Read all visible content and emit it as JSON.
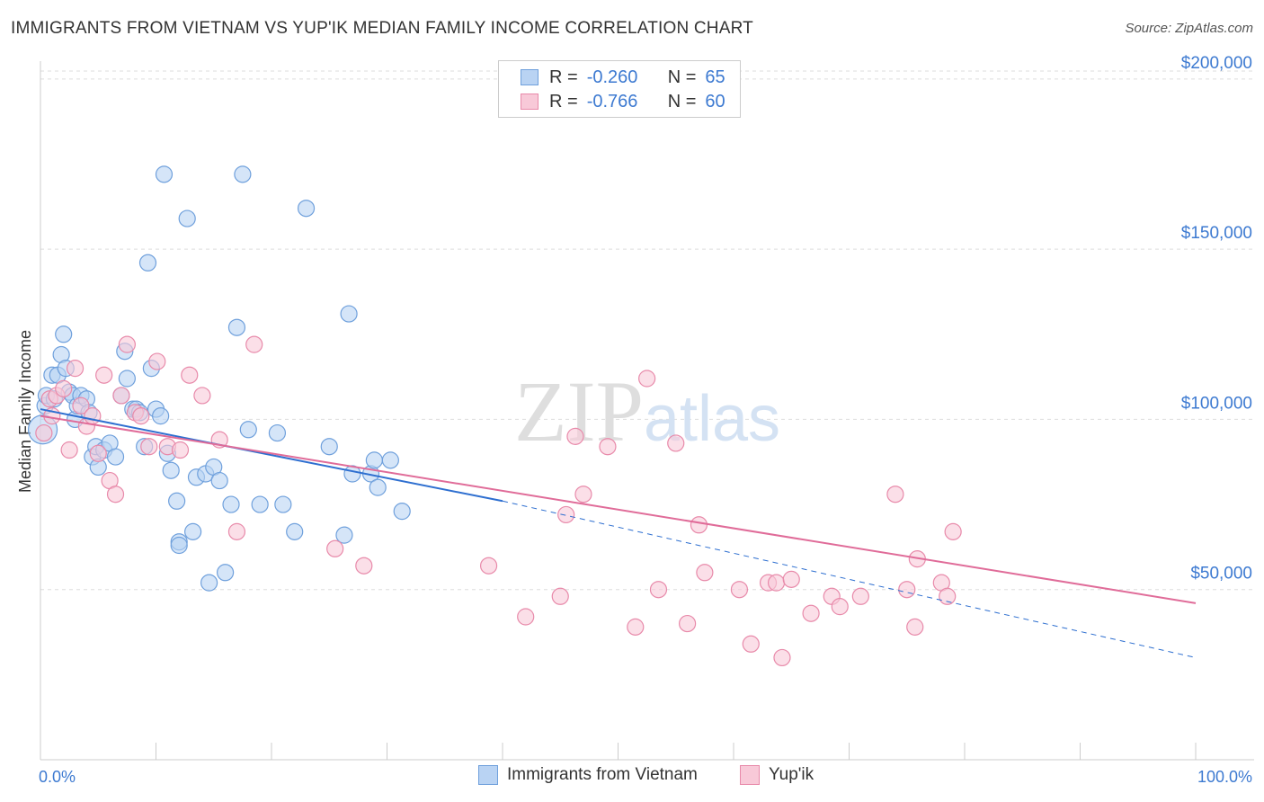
{
  "header": {
    "title": "IMMIGRANTS FROM VIETNAM VS YUP'IK MEDIAN FAMILY INCOME CORRELATION CHART",
    "source": "Source: ZipAtlas.com"
  },
  "legend": {
    "r_label": "R =",
    "n_label": "N =",
    "rows": [
      {
        "r": "-0.260",
        "n": "65"
      },
      {
        "r": "-0.766",
        "n": "60"
      }
    ]
  },
  "watermark": {
    "part1": "ZIP",
    "part2": "atlas"
  },
  "colors": {
    "blue_fill": "#b9d3f3",
    "blue_stroke": "#6fa0dc",
    "blue_line": "#2e6fd0",
    "pink_fill": "#f8c9d8",
    "pink_stroke": "#e88aaa",
    "pink_line": "#e06c99",
    "tick_text": "#3d7ad1",
    "grid": "#dddddd"
  },
  "chart_data": {
    "type": "scatter",
    "title": "IMMIGRANTS FROM VIETNAM VS YUP'IK MEDIAN FAMILY INCOME CORRELATION CHART",
    "xlabel": "",
    "ylabel": "Median Family Income",
    "xlim": [
      0,
      100
    ],
    "ylim": [
      0,
      210000
    ],
    "x_tick_labels": [
      "0.0%",
      "100.0%"
    ],
    "y_ticks": [
      50000,
      100000,
      150000,
      200000
    ],
    "y_tick_labels": [
      "$50,000",
      "$100,000",
      "$150,000",
      "$200,000"
    ],
    "grid": true,
    "legend_position": "top-center",
    "series": [
      {
        "name": "Immigrants from Vietnam",
        "color": "#6fa0dc",
        "points": [
          [
            0.2,
            97000
          ],
          [
            0.4,
            104000
          ],
          [
            0.5,
            107000
          ],
          [
            1.0,
            113000
          ],
          [
            1.2,
            106000
          ],
          [
            1.5,
            113000
          ],
          [
            1.8,
            119000
          ],
          [
            2.0,
            125000
          ],
          [
            2.2,
            115000
          ],
          [
            2.5,
            108000
          ],
          [
            2.8,
            107000
          ],
          [
            3.0,
            100000
          ],
          [
            3.2,
            104000
          ],
          [
            3.5,
            107000
          ],
          [
            4.0,
            106000
          ],
          [
            4.2,
            102000
          ],
          [
            4.5,
            89000
          ],
          [
            4.8,
            92000
          ],
          [
            5.0,
            86000
          ],
          [
            5.5,
            91000
          ],
          [
            6.0,
            93000
          ],
          [
            6.5,
            89000
          ],
          [
            7.0,
            107000
          ],
          [
            7.3,
            120000
          ],
          [
            7.5,
            112000
          ],
          [
            8.0,
            103000
          ],
          [
            8.3,
            103000
          ],
          [
            8.6,
            102000
          ],
          [
            9.0,
            92000
          ],
          [
            9.3,
            146000
          ],
          [
            9.6,
            115000
          ],
          [
            10.0,
            103000
          ],
          [
            10.4,
            101000
          ],
          [
            10.7,
            172000
          ],
          [
            11.0,
            90000
          ],
          [
            11.3,
            85000
          ],
          [
            11.8,
            76000
          ],
          [
            12.0,
            64000
          ],
          [
            12.7,
            159000
          ],
          [
            13.2,
            67000
          ],
          [
            13.5,
            83000
          ],
          [
            14.3,
            84000
          ],
          [
            14.6,
            52000
          ],
          [
            15.0,
            86000
          ],
          [
            15.5,
            82000
          ],
          [
            16.0,
            55000
          ],
          [
            17.0,
            127000
          ],
          [
            17.5,
            172000
          ],
          [
            18.0,
            97000
          ],
          [
            19.0,
            75000
          ],
          [
            20.5,
            96000
          ],
          [
            21.0,
            75000
          ],
          [
            22.0,
            67000
          ],
          [
            23.0,
            162000
          ],
          [
            25.0,
            92000
          ],
          [
            26.3,
            66000
          ],
          [
            26.7,
            131000
          ],
          [
            27.0,
            84000
          ],
          [
            28.6,
            84000
          ],
          [
            28.9,
            88000
          ],
          [
            29.2,
            80000
          ],
          [
            30.3,
            88000
          ],
          [
            31.3,
            73000
          ],
          [
            12.0,
            63000
          ],
          [
            16.5,
            75000
          ]
        ],
        "trend": {
          "x": [
            0,
            40
          ],
          "y": [
            103000,
            76000
          ]
        },
        "trend_dashed": {
          "x": [
            40,
            100
          ],
          "y": [
            76000,
            30000
          ]
        }
      },
      {
        "name": "Yup'ik",
        "color": "#e88aaa",
        "points": [
          [
            0.3,
            96000
          ],
          [
            0.8,
            106000
          ],
          [
            1.0,
            101000
          ],
          [
            1.4,
            107000
          ],
          [
            2.0,
            109000
          ],
          [
            2.5,
            91000
          ],
          [
            3.0,
            115000
          ],
          [
            3.5,
            104000
          ],
          [
            4.0,
            98000
          ],
          [
            4.5,
            101000
          ],
          [
            5.0,
            90000
          ],
          [
            5.5,
            113000
          ],
          [
            6.0,
            82000
          ],
          [
            6.5,
            78000
          ],
          [
            7.0,
            107000
          ],
          [
            7.5,
            122000
          ],
          [
            8.2,
            102000
          ],
          [
            8.7,
            101000
          ],
          [
            9.4,
            92000
          ],
          [
            10.1,
            117000
          ],
          [
            11.0,
            92000
          ],
          [
            12.1,
            91000
          ],
          [
            12.9,
            113000
          ],
          [
            14.0,
            107000
          ],
          [
            15.5,
            94000
          ],
          [
            17.0,
            67000
          ],
          [
            18.5,
            122000
          ],
          [
            25.5,
            62000
          ],
          [
            28.0,
            57000
          ],
          [
            38.8,
            57000
          ],
          [
            42.0,
            42000
          ],
          [
            45.0,
            48000
          ],
          [
            45.5,
            72000
          ],
          [
            46.3,
            95000
          ],
          [
            47.0,
            78000
          ],
          [
            49.1,
            92000
          ],
          [
            51.5,
            39000
          ],
          [
            52.5,
            112000
          ],
          [
            53.5,
            50000
          ],
          [
            55.0,
            93000
          ],
          [
            56.0,
            40000
          ],
          [
            57.0,
            69000
          ],
          [
            57.5,
            55000
          ],
          [
            60.5,
            50000
          ],
          [
            61.5,
            34000
          ],
          [
            63.0,
            52000
          ],
          [
            63.7,
            52000
          ],
          [
            64.2,
            30000
          ],
          [
            65.0,
            53000
          ],
          [
            66.7,
            43000
          ],
          [
            68.5,
            48000
          ],
          [
            69.2,
            45000
          ],
          [
            71.0,
            48000
          ],
          [
            74.0,
            78000
          ],
          [
            75.0,
            50000
          ],
          [
            75.7,
            39000
          ],
          [
            75.9,
            59000
          ],
          [
            78.0,
            52000
          ],
          [
            78.5,
            48000
          ],
          [
            79.0,
            67000
          ]
        ],
        "trend": {
          "x": [
            0,
            100
          ],
          "y": [
            101000,
            46000
          ]
        }
      }
    ]
  },
  "bottom_legend": {
    "items": [
      {
        "label": "Immigrants from Vietnam"
      },
      {
        "label": "Yup'ik"
      }
    ]
  }
}
